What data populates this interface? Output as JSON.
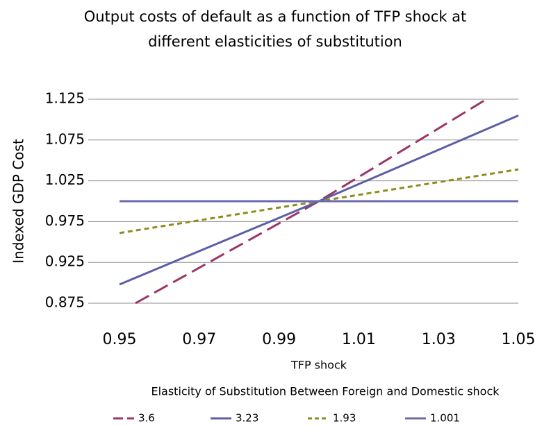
{
  "chart_data": {
    "type": "line",
    "title": "Output costs of default  as a function of TFP shock at different elasticities of substitution",
    "xlabel": "TFP shock",
    "ylabel": "Indexed GDP Cost",
    "legend_title": "Elasticity of Substitution Between Foreign and Domestic shock",
    "xlim": [
      0.95,
      1.05
    ],
    "xticks": [
      0.95,
      0.97,
      0.99,
      1.01,
      1.03,
      1.05
    ],
    "ylim": [
      0.875,
      1.125
    ],
    "yticks": [
      0.875,
      0.925,
      0.975,
      1.025,
      1.075,
      1.125
    ],
    "grid": true,
    "legend": "bottom",
    "series": [
      {
        "name": "3.6",
        "color": "#9b3566",
        "dash": "dashed",
        "x": [
          0.954,
          1.0,
          1.042
        ],
        "values": [
          0.875,
          1.0,
          1.125
        ]
      },
      {
        "name": "3.23",
        "color": "#5b5ea6",
        "dash": "solid",
        "x": [
          0.95,
          1.0,
          1.05
        ],
        "values": [
          0.898,
          1.0,
          1.105
        ]
      },
      {
        "name": "1.93",
        "color": "#8c8c1c",
        "dash": "dotted",
        "x": [
          0.95,
          1.0,
          1.05
        ],
        "values": [
          0.961,
          1.0,
          1.039
        ]
      },
      {
        "name": "1.001",
        "color": "#6b6bab",
        "dash": "solid",
        "x": [
          0.95,
          1.0,
          1.05
        ],
        "values": [
          1.0,
          1.0,
          1.0
        ]
      }
    ]
  }
}
